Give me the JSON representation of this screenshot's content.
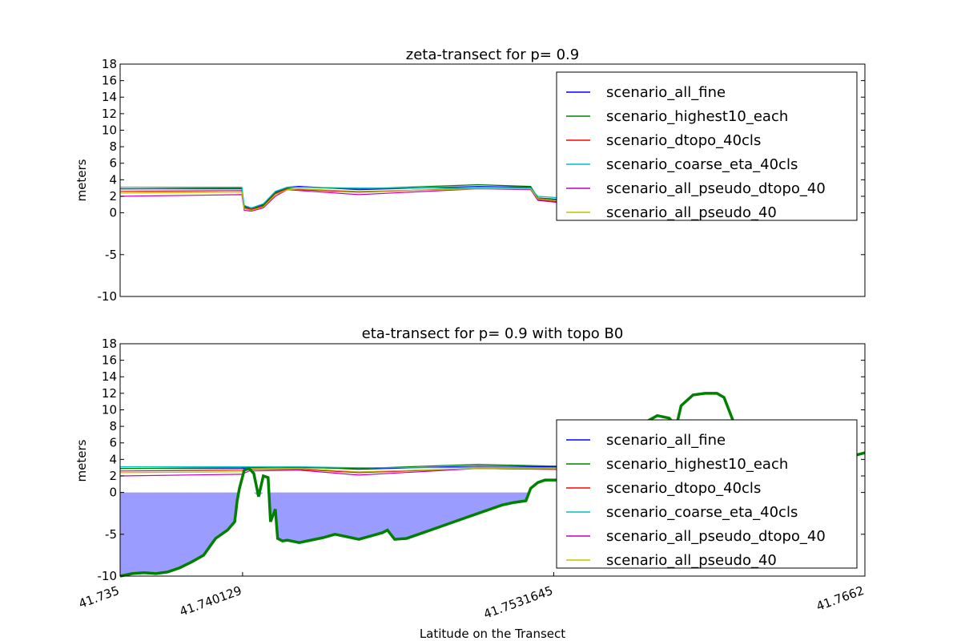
{
  "chart_data": [
    {
      "type": "line",
      "title": "zeta-transect for p= 0.9",
      "ylabel": "meters",
      "xlabel": "",
      "xlim": [
        41.735,
        41.7662
      ],
      "ylim": [
        -10,
        18
      ],
      "yticks": [
        -10,
        -5,
        0,
        2,
        4,
        6,
        8,
        10,
        12,
        14,
        16,
        18
      ],
      "legend_position": "upper right",
      "series": [
        {
          "name": "scenario_all_fine",
          "color": "#0000ff",
          "x": [
            41.735,
            41.7401,
            41.7402,
            41.7405,
            41.741,
            41.7415,
            41.742,
            41.7425,
            41.745,
            41.75,
            41.7522,
            41.7525,
            41.7535,
            41.754,
            41.7542,
            41.7548,
            41.755,
            41.7556,
            41.7567
          ],
          "y": [
            2.9,
            2.9,
            0.8,
            0.6,
            1.0,
            2.5,
            3.1,
            3.2,
            2.8,
            3.2,
            3.1,
            1.8,
            1.6,
            3.1,
            1.9,
            2.7,
            2.6,
            2.2,
            1.2
          ]
        },
        {
          "name": "scenario_highest10_each",
          "color": "#008000",
          "x": [
            41.735,
            41.7401,
            41.7402,
            41.7405,
            41.741,
            41.7415,
            41.742,
            41.7425,
            41.745,
            41.75,
            41.7522,
            41.7525,
            41.7535,
            41.754,
            41.7542,
            41.7548,
            41.755,
            41.7556,
            41.7567
          ],
          "y": [
            2.9,
            3.0,
            0.7,
            0.5,
            0.9,
            2.4,
            3.0,
            3.1,
            2.9,
            3.4,
            3.2,
            1.8,
            1.5,
            3.0,
            2.0,
            2.8,
            2.7,
            2.3,
            1.3
          ]
        },
        {
          "name": "scenario_dtopo_40cls",
          "color": "#ff0000",
          "x": [
            41.735,
            41.7401,
            41.7402,
            41.7405,
            41.741,
            41.7415,
            41.742,
            41.7425,
            41.745,
            41.75,
            41.7522,
            41.7525,
            41.7535,
            41.754,
            41.7542,
            41.7548,
            41.755,
            41.7556,
            41.7567
          ],
          "y": [
            2.6,
            2.7,
            0.6,
            0.4,
            0.8,
            2.3,
            2.9,
            2.8,
            2.5,
            3.0,
            2.9,
            1.6,
            1.3,
            2.9,
            1.7,
            2.5,
            2.4,
            2.1,
            1.1
          ]
        },
        {
          "name": "scenario_coarse_eta_40cls",
          "color": "#00bfbf",
          "x": [
            41.735,
            41.7401,
            41.7402,
            41.7405,
            41.741,
            41.7415,
            41.742,
            41.7425,
            41.745,
            41.75,
            41.7522,
            41.7525,
            41.7535,
            41.754,
            41.7542,
            41.7548,
            41.755,
            41.7556,
            41.7567
          ],
          "y": [
            3.1,
            3.1,
            0.9,
            0.6,
            1.1,
            2.6,
            3.1,
            3.1,
            3.0,
            3.0,
            3.0,
            2.0,
            1.8,
            3.2,
            2.1,
            2.8,
            2.7,
            2.3,
            1.4
          ]
        },
        {
          "name": "scenario_all_pseudo_dtopo_40",
          "color": "#bf00bf",
          "x": [
            41.735,
            41.7401,
            41.7402,
            41.7405,
            41.741,
            41.7415,
            41.742,
            41.7425,
            41.745,
            41.75,
            41.7522,
            41.7525,
            41.7535,
            41.754,
            41.7542,
            41.7548,
            41.755,
            41.7556,
            41.7567
          ],
          "y": [
            2.0,
            2.2,
            0.3,
            0.2,
            0.6,
            2.0,
            2.8,
            2.7,
            2.2,
            2.9,
            2.8,
            1.5,
            1.2,
            2.8,
            1.6,
            2.4,
            2.3,
            2.0,
            1.0
          ]
        },
        {
          "name": "scenario_all_pseudo_40",
          "color": "#bfbf00",
          "x": [
            41.735,
            41.7401,
            41.7402,
            41.7405,
            41.741,
            41.7415,
            41.742,
            41.7425,
            41.745,
            41.75,
            41.7522,
            41.7525,
            41.7535,
            41.754,
            41.7542,
            41.7548,
            41.755,
            41.7556,
            41.7567
          ],
          "y": [
            2.4,
            2.5,
            0.5,
            0.3,
            0.7,
            2.2,
            2.8,
            2.9,
            2.6,
            2.9,
            2.9,
            1.7,
            1.4,
            2.9,
            1.8,
            2.6,
            2.5,
            2.1,
            1.2
          ]
        }
      ]
    },
    {
      "type": "line",
      "title": "eta-transect for p= 0.9 with topo B0",
      "ylabel": "meters",
      "xlabel": "Latitude on the Transect",
      "xlim": [
        41.735,
        41.7662
      ],
      "ylim": [
        -10,
        18
      ],
      "yticks": [
        -10,
        -5,
        0,
        2,
        4,
        6,
        8,
        10,
        12,
        14,
        16,
        18
      ],
      "xticks": [
        41.735,
        41.740129,
        41.7531645,
        41.7662
      ],
      "xticklabels": [
        "41.735",
        "41.740129",
        "41.7531645",
        "41.7662"
      ],
      "legend_position": "center right",
      "series": [
        {
          "name": "scenario_all_fine",
          "color": "#0000ff",
          "x": [
            41.735,
            41.7401,
            41.7404,
            41.7425,
            41.745,
            41.75,
            41.753,
            41.7545
          ],
          "y": [
            2.9,
            2.9,
            3.0,
            3.1,
            2.8,
            3.2,
            3.1,
            3.1
          ]
        },
        {
          "name": "scenario_highest10_each",
          "color": "#008000",
          "x": [
            41.735,
            41.7401,
            41.7404,
            41.7425,
            41.745,
            41.75,
            41.753,
            41.7545
          ],
          "y": [
            2.9,
            3.0,
            3.1,
            3.0,
            2.9,
            3.4,
            3.2,
            3.2
          ]
        },
        {
          "name": "scenario_dtopo_40cls",
          "color": "#ff0000",
          "x": [
            41.735,
            41.7401,
            41.7404,
            41.7425,
            41.745,
            41.75,
            41.753,
            41.7545
          ],
          "y": [
            2.6,
            2.7,
            2.8,
            2.8,
            2.4,
            2.9,
            2.8,
            2.8
          ]
        },
        {
          "name": "scenario_coarse_eta_40cls",
          "color": "#00bfbf",
          "x": [
            41.735,
            41.7401,
            41.7404,
            41.7425,
            41.745,
            41.75,
            41.753,
            41.7545
          ],
          "y": [
            3.1,
            3.1,
            3.1,
            3.1,
            3.0,
            3.0,
            3.0,
            3.1
          ]
        },
        {
          "name": "scenario_all_pseudo_dtopo_40",
          "color": "#bf00bf",
          "x": [
            41.735,
            41.7401,
            41.7404,
            41.7425,
            41.745,
            41.75,
            41.753,
            41.7545
          ],
          "y": [
            2.0,
            2.2,
            2.6,
            2.7,
            2.1,
            2.9,
            2.8,
            2.8
          ]
        },
        {
          "name": "scenario_all_pseudo_40",
          "color": "#bfbf00",
          "x": [
            41.735,
            41.7401,
            41.7404,
            41.7425,
            41.745,
            41.75,
            41.753,
            41.7545
          ],
          "y": [
            2.4,
            2.5,
            2.9,
            2.9,
            2.5,
            2.9,
            2.9,
            2.9
          ]
        }
      ],
      "topo": {
        "color": "#008000",
        "fill_color": "#9a9cff",
        "x": [
          41.735,
          41.7355,
          41.736,
          41.7365,
          41.737,
          41.7375,
          41.738,
          41.7385,
          41.739,
          41.7395,
          41.7398,
          41.7399,
          41.74,
          41.7402,
          41.7404,
          41.7406,
          41.7408,
          41.741,
          41.7412,
          41.7413,
          41.7415,
          41.7416,
          41.7418,
          41.742,
          41.7425,
          41.743,
          41.7435,
          41.744,
          41.7445,
          41.745,
          41.7455,
          41.746,
          41.7462,
          41.7465,
          41.747,
          41.7475,
          41.748,
          41.7485,
          41.749,
          41.7495,
          41.75,
          41.7505,
          41.751,
          41.7515,
          41.752,
          41.7522,
          41.7525,
          41.7528,
          41.753,
          41.7535,
          41.7538,
          41.754,
          41.7542,
          41.7545,
          41.755,
          41.7555,
          41.756,
          41.7565,
          41.757,
          41.7575,
          41.758,
          41.7583,
          41.7585,
          41.759,
          41.7595,
          41.76,
          41.7603,
          41.7605,
          41.7607
        ],
        "y": [
          -10,
          -9.7,
          -9.6,
          -9.7,
          -9.5,
          -9.0,
          -8.3,
          -7.5,
          -5.5,
          -4.5,
          -3.5,
          -1.0,
          0.5,
          2.7,
          2.9,
          2.3,
          -0.5,
          2.0,
          1.8,
          -3.5,
          -2.0,
          -5.5,
          -5.8,
          -5.7,
          -6.0,
          -5.7,
          -5.4,
          -5.0,
          -5.3,
          -5.6,
          -5.2,
          -4.8,
          -4.5,
          -5.6,
          -5.5,
          -5.0,
          -4.5,
          -4.0,
          -3.5,
          -3.0,
          -2.5,
          -2.0,
          -1.5,
          -1.2,
          -1.0,
          0.5,
          1.2,
          1.5,
          1.5,
          1.5,
          1.5,
          -1.8,
          1.0,
          1.0,
          1.5,
          3.0,
          5.0,
          7.0,
          8.5,
          9.3,
          9.0,
          8.0,
          10.5,
          11.8,
          12.0,
          12.0,
          11.5,
          10.0,
          8.5
        ]
      },
      "topo_tail": {
        "x": [
          41.7658,
          41.7662
        ],
        "y": [
          4.5,
          4.8
        ]
      }
    }
  ],
  "legend": {
    "entries": [
      {
        "label": "scenario_all_fine",
        "color": "#0000ff"
      },
      {
        "label": "scenario_highest10_each",
        "color": "#008000"
      },
      {
        "label": "scenario_dtopo_40cls",
        "color": "#ff0000"
      },
      {
        "label": "scenario_coarse_eta_40cls",
        "color": "#00bfbf"
      },
      {
        "label": "scenario_all_pseudo_dtopo_40",
        "color": "#bf00bf"
      },
      {
        "label": "scenario_all_pseudo_40",
        "color": "#bfbf00"
      }
    ]
  }
}
